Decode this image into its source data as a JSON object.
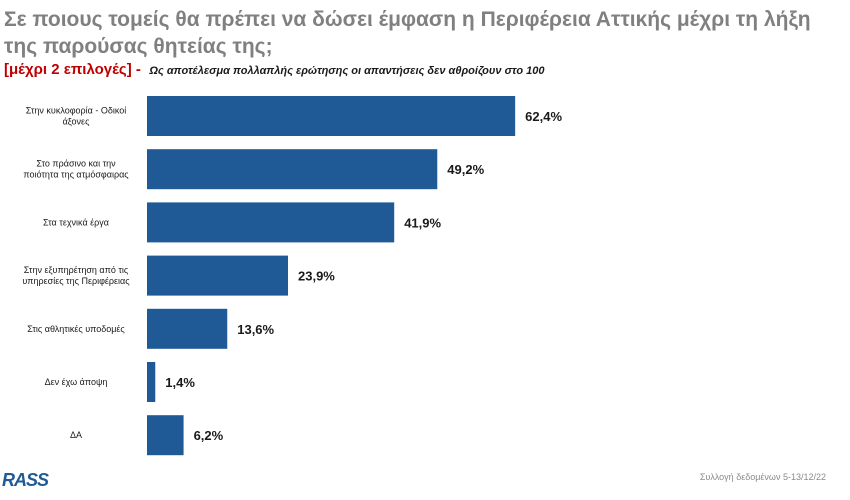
{
  "title": "Σε ποιους τομείς θα πρέπει να δώσει έμφαση η Περιφέρεια Αττικής μέχρι τη λήξη της παρούσας θητείας της;",
  "subtitle_highlight": "[μέχρι 2 επιλογές] -",
  "subtitle_note": "Ως αποτέλεσμα πολλαπλής ερώτησης οι απαντήσεις δεν αθροίζουν στο 100",
  "logo_text": "RASS",
  "footer": "Συλλογή δεδομένων 5-13/12/22",
  "colors": {
    "bar": "#1f5a96",
    "title": "#808080",
    "highlight": "#c00000"
  },
  "chart_data": {
    "type": "bar",
    "orientation": "horizontal",
    "categories": [
      [
        "Στην κυκλοφορία - Οδικοί",
        "άξονες"
      ],
      [
        "Στο πράσινο και την",
        "ποιότητα της ατμόσφαιρας"
      ],
      [
        "Στα τεχνικά έργα"
      ],
      [
        "Στην εξυπηρέτηση από τις",
        "υπηρεσίες της Περιφέρειας"
      ],
      [
        "Στις αθλητικές υποδομές"
      ],
      [
        "Δεν έχω άποψη"
      ],
      [
        "ΔΑ"
      ]
    ],
    "values": [
      62.4,
      49.2,
      41.9,
      23.9,
      13.6,
      1.4,
      6.2
    ],
    "value_labels": [
      "62,4%",
      "49,2%",
      "41,9%",
      "23,9%",
      "13,6%",
      "1,4%",
      "6,2%"
    ],
    "xlim": [
      0,
      100
    ],
    "grid": false
  }
}
